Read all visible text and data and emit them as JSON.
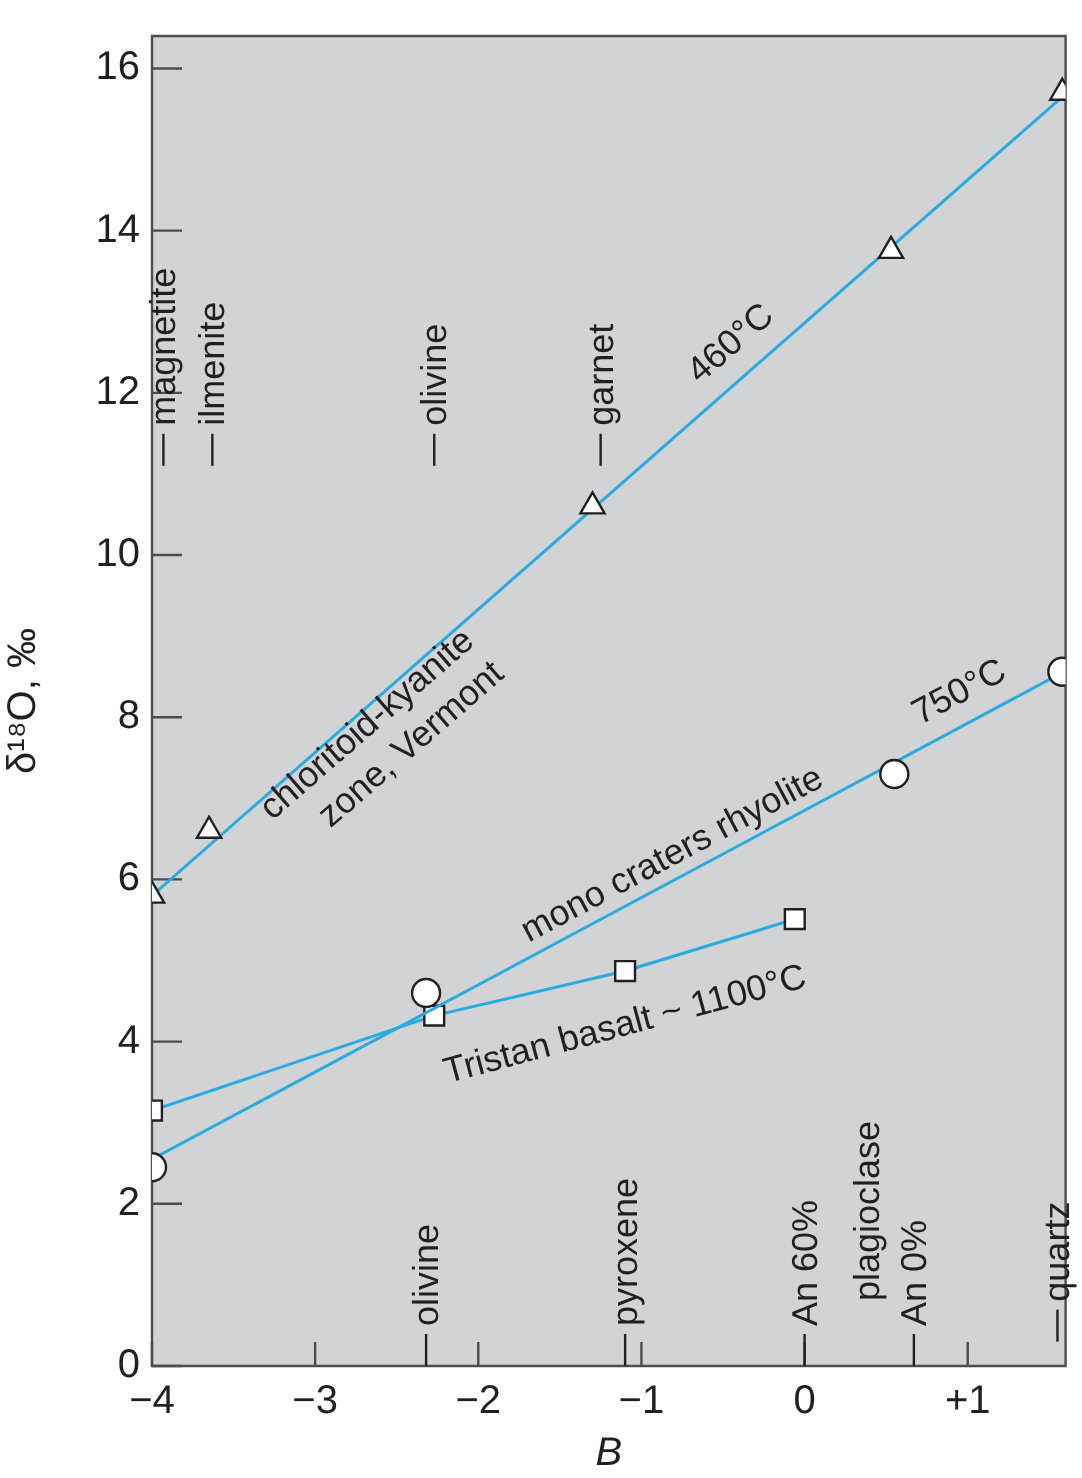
{
  "chart_data": {
    "type": "scatter",
    "xlabel": "B",
    "ylabel": "δ¹⁸O, ‰",
    "xlim": [
      -4,
      1.6
    ],
    "ylim": [
      0,
      16.4
    ],
    "xticks": [
      -4,
      -3,
      -2,
      -1,
      0,
      {
        "value": 1,
        "label": "+1"
      }
    ],
    "yticks": [
      0,
      2,
      4,
      6,
      8,
      10,
      12,
      14,
      16
    ],
    "grid": false,
    "legend": false,
    "series": [
      {
        "type": "line",
        "color": "#29abe2",
        "marker": "none",
        "x": [
          -4,
          1.58
        ],
        "values": [
          5.8,
          15.65
        ]
      },
      {
        "type": "line",
        "color": "#29abe2",
        "marker": "none",
        "x": [
          -4,
          1.58
        ],
        "values": [
          2.55,
          8.55
        ]
      },
      {
        "type": "line",
        "color": "#29abe2",
        "marker": "square",
        "x": [
          -4,
          -2.27,
          -1.1,
          -0.06
        ],
        "values": [
          3.15,
          4.32,
          4.87,
          5.51
        ]
      },
      {
        "type": "scatter",
        "color": "#ffffff",
        "marker": "triangle",
        "x": [
          -4,
          -3.65,
          -1.3,
          0.53,
          1.58
        ],
        "values": [
          5.8,
          6.6,
          10.6,
          13.75,
          15.7
        ]
      },
      {
        "type": "scatter",
        "color": "#ffffff",
        "marker": "circle",
        "x": [
          -4,
          -2.32,
          0.55,
          1.58
        ],
        "values": [
          2.45,
          4.6,
          7.3,
          8.56
        ]
      }
    ],
    "annotations": [
      "magnetite",
      "ilmenite",
      "olivine",
      "garnet",
      "olivine",
      "pyroxene",
      "An 60%",
      "plagioclase",
      "An 0%",
      "quartz",
      "chloritoid-kyanite\nzone, Vermont",
      "460°C",
      "mono craters rhyolite",
      "750°C",
      "Tristan basalt ~ 1100°C"
    ]
  }
}
